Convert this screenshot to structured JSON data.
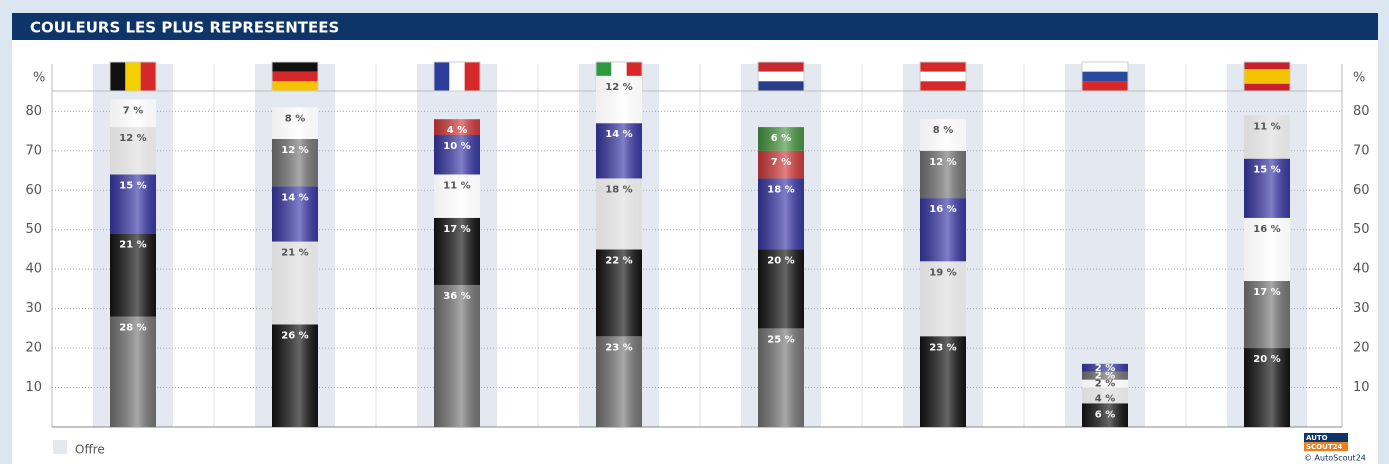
{
  "chart_data": {
    "type": "stacked-bar",
    "title": "COULEURS LES PLUS REPRESENTEES",
    "y_label": "%",
    "ylim": [
      0,
      92
    ],
    "yticks": [
      10,
      20,
      30,
      40,
      50,
      60,
      70,
      80
    ],
    "grid": true,
    "legend": "Offre",
    "logo": {
      "line1": "AUTO",
      "line2": "SCOUT24",
      "copyright": "© AutoScout24"
    },
    "categories": [
      null,
      null,
      null,
      null,
      null,
      null,
      null,
      null
    ],
    "bars": [
      {
        "segments": [
          {
            "color": "#7a7a7a",
            "values": 28,
            "value_labels": "28 %"
          },
          {
            "color": "#151515",
            "values": 21,
            "value_labels": "21 %"
          },
          {
            "color": "#3b3bab",
            "values": 15,
            "value_labels": "15 %"
          },
          {
            "color": "#e8e8e8",
            "values": 12,
            "value_labels": "12 %"
          },
          {
            "color": "#ffffff",
            "values": 7,
            "value_labels": "7 %"
          }
        ]
      },
      {
        "segments": [
          {
            "color": "#151515",
            "values": 26,
            "value_labels": "26 %"
          },
          {
            "color": "#e8e8e8",
            "values": 21,
            "value_labels": "21 %"
          },
          {
            "color": "#3b3bab",
            "values": 14,
            "value_labels": "14 %"
          },
          {
            "color": "#7a7a7a",
            "values": 12,
            "value_labels": "12 %"
          },
          {
            "color": "#ffffff",
            "values": 8,
            "value_labels": "8 %"
          }
        ]
      },
      {
        "segments": [
          {
            "color": "#7a7a7a",
            "values": 36,
            "value_labels": "36 %"
          },
          {
            "color": "#151515",
            "values": 17,
            "value_labels": "17 %"
          },
          {
            "color": "#ffffff",
            "values": 11,
            "value_labels": "11 %"
          },
          {
            "color": "#3b3bab",
            "values": 10,
            "value_labels": "10 %"
          },
          {
            "color": "#d63c3c",
            "values": 4,
            "value_labels": "4 %"
          }
        ]
      },
      {
        "segments": [
          {
            "color": "#7a7a7a",
            "values": 23,
            "value_labels": "23 %"
          },
          {
            "color": "#151515",
            "values": 22,
            "value_labels": "22 %"
          },
          {
            "color": "#e8e8e8",
            "values": 18,
            "value_labels": "18 %"
          },
          {
            "color": "#3b3bab",
            "values": 14,
            "value_labels": "14 %"
          },
          {
            "color": "#ffffff",
            "values": 12,
            "value_labels": "12 %"
          }
        ]
      },
      {
        "segments": [
          {
            "color": "#7a7a7a",
            "values": 25,
            "value_labels": "25 %"
          },
          {
            "color": "#151515",
            "values": 20,
            "value_labels": "20 %"
          },
          {
            "color": "#3b3bab",
            "values": 18,
            "value_labels": "18 %"
          },
          {
            "color": "#d63c3c",
            "values": 7,
            "value_labels": "7 %"
          },
          {
            "color": "#4a9a44",
            "values": 6,
            "value_labels": "6 %"
          }
        ]
      },
      {
        "segments": [
          {
            "color": "#151515",
            "values": 23,
            "value_labels": "23 %"
          },
          {
            "color": "#e8e8e8",
            "values": 19,
            "value_labels": "19 %"
          },
          {
            "color": "#3b3bab",
            "values": 16,
            "value_labels": "16 %"
          },
          {
            "color": "#7a7a7a",
            "values": 12,
            "value_labels": "12 %"
          },
          {
            "color": "#ffffff",
            "values": 8,
            "value_labels": "8 %"
          }
        ]
      },
      {
        "segments": [
          {
            "color": "#151515",
            "values": 6,
            "value_labels": "6 %"
          },
          {
            "color": "#e8e8e8",
            "values": 4,
            "value_labels": "4 %"
          },
          {
            "color": "#ffffff",
            "values": 2,
            "value_labels": "2 %"
          },
          {
            "color": "#7a7a7a",
            "values": 2,
            "value_labels": "2 %"
          },
          {
            "color": "#3b3bab",
            "values": 2,
            "value_labels": "2 %"
          }
        ]
      },
      {
        "segments": [
          {
            "color": "#151515",
            "values": 20,
            "value_labels": "20 %"
          },
          {
            "color": "#7a7a7a",
            "values": 17,
            "value_labels": "17 %"
          },
          {
            "color": "#ffffff",
            "values": 16,
            "value_labels": "16 %"
          },
          {
            "color": "#3b3bab",
            "values": 15,
            "value_labels": "15 %"
          },
          {
            "color": "#e8e8e8",
            "values": 11,
            "value_labels": "11 %"
          }
        ]
      }
    ]
  }
}
